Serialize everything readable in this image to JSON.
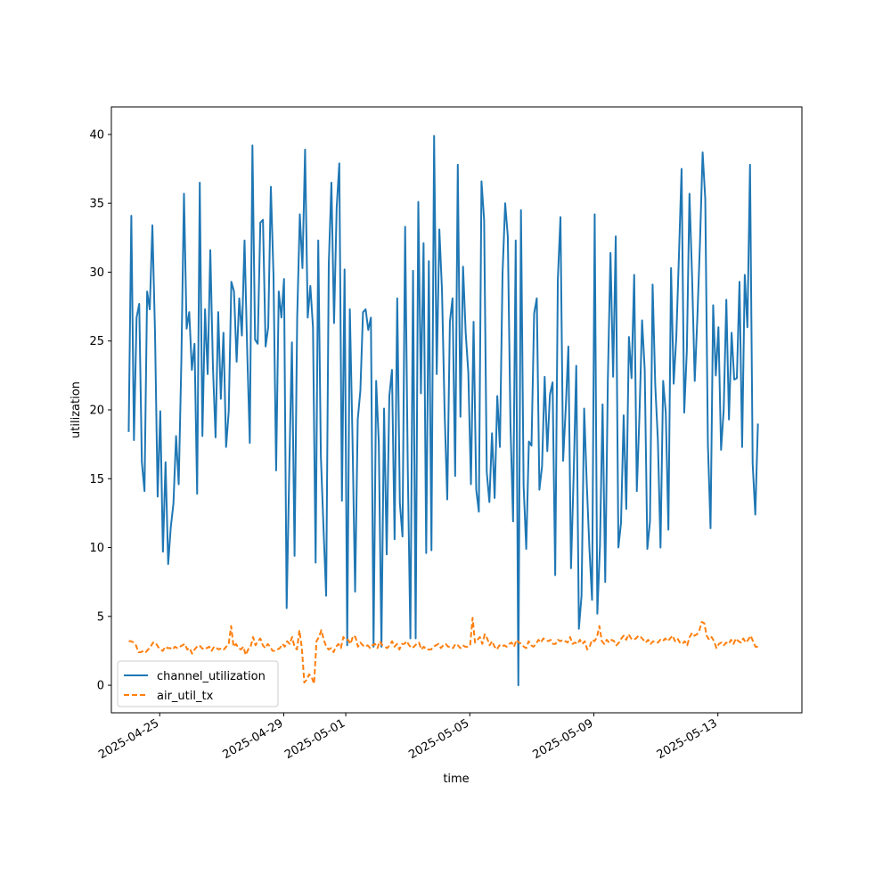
{
  "chart_data": {
    "type": "line",
    "xlabel": "time",
    "ylabel": "utilization",
    "ylim": [
      -2,
      42
    ],
    "xlim": [
      "2025-04-23T10:36",
      "2025-05-15T17:02"
    ],
    "x_start": "2025-04-24T00:00",
    "x_end": "2025-05-14T07:00",
    "x_tick_labels": [
      "2025-04-25",
      "2025-04-29",
      "2025-05-01",
      "2025-05-05",
      "2025-05-09",
      "2025-05-13"
    ],
    "y_ticks": [
      0,
      5,
      10,
      15,
      20,
      25,
      30,
      35,
      40
    ],
    "grid": false,
    "legend_position": "lower left",
    "series": [
      {
        "name": "channel_utilization",
        "color": "#1f77b4",
        "dash": "solid",
        "values": [
          18.4,
          34.1,
          17.8,
          26.7,
          27.7,
          16.2,
          14.1,
          28.6,
          27.3,
          33.4,
          25.6,
          13.7,
          19.9,
          9.7,
          16.2,
          8.8,
          11.5,
          13.2,
          18.1,
          14.6,
          23.5,
          35.7,
          25.9,
          27.1,
          22.9,
          24.8,
          13.9,
          36.5,
          18.1,
          27.3,
          22.6,
          31.6,
          23.1,
          18.0,
          27.1,
          20.8,
          25.6,
          17.3,
          19.9,
          29.3,
          28.6,
          23.5,
          28.1,
          25.4,
          32.3,
          24.4,
          17.6,
          39.2,
          25.1,
          24.8,
          33.6,
          33.8,
          24.6,
          26.0,
          36.2,
          29.8,
          15.6,
          28.6,
          26.7,
          29.5,
          5.6,
          15.7,
          24.9,
          9.4,
          26.7,
          34.2,
          30.3,
          38.9,
          26.7,
          29.0,
          26.0,
          8.9,
          32.3,
          16.6,
          11.4,
          6.5,
          30.6,
          36.5,
          26.3,
          34.7,
          37.9,
          13.4,
          30.2,
          2.9,
          27.3,
          18.0,
          6.8,
          19.3,
          21.4,
          27.1,
          27.3,
          25.8,
          26.7,
          2.8,
          22.1,
          17.6,
          2.8,
          20.1,
          9.5,
          21.0,
          22.9,
          10.6,
          28.1,
          13.2,
          10.8,
          33.3,
          15.8,
          3.4,
          30.1,
          3.4,
          35.1,
          21.2,
          32.1,
          9.6,
          30.8,
          9.8,
          39.9,
          22.6,
          33.1,
          28.7,
          19.8,
          13.5,
          26.4,
          28.1,
          15.2,
          37.8,
          19.5,
          30.4,
          25.6,
          22.7,
          14.6,
          26.4,
          14.2,
          12.6,
          36.6,
          33.8,
          15.5,
          13.3,
          18.3,
          13.6,
          21.0,
          17.3,
          29.9,
          35.0,
          32.6,
          19.0,
          11.9,
          32.3,
          0.0,
          34.5,
          14.5,
          9.9,
          17.7,
          17.4,
          27.0,
          28.1,
          14.2,
          15.9,
          22.4,
          17.0,
          21.1,
          22.0,
          8.0,
          29.5,
          34.0,
          16.3,
          20.1,
          24.6,
          8.5,
          15.2,
          23.2,
          4.1,
          6.5,
          20.1,
          14.6,
          9.9,
          6.2,
          34.2,
          5.2,
          10.1,
          20.4,
          7.5,
          22.2,
          31.4,
          22.4,
          32.6,
          10.0,
          11.8,
          19.6,
          12.8,
          25.3,
          22.3,
          29.8,
          14.1,
          19.6,
          26.5,
          22.9,
          9.9,
          11.9,
          29.1,
          21.8,
          17.8,
          10.0,
          22.1,
          19.8,
          11.3,
          30.3,
          21.9,
          25.3,
          31.2,
          37.5,
          19.8,
          24.3,
          35.7,
          29.6,
          22.1,
          26.7,
          32.2,
          38.7,
          35.3,
          17.5,
          11.4,
          27.6,
          22.5,
          26.0,
          17.1,
          20.0,
          28.0,
          19.3,
          25.6,
          22.2,
          22.3,
          29.3,
          17.3,
          29.8,
          26.0,
          37.8,
          16.1,
          12.4,
          19.0
        ]
      },
      {
        "name": "air_util_tx",
        "color": "#ff7f0e",
        "dash": "dashed",
        "values": [
          3.2,
          3.2,
          3.1,
          2.9,
          2.4,
          2.4,
          2.5,
          2.4,
          2.6,
          2.8,
          3.1,
          3.1,
          2.8,
          2.6,
          2.5,
          2.8,
          2.7,
          2.7,
          2.6,
          2.8,
          2.7,
          2.8,
          2.9,
          3.0,
          2.6,
          2.7,
          2.3,
          2.6,
          2.8,
          2.9,
          2.7,
          2.6,
          2.7,
          2.8,
          2.5,
          2.8,
          2.7,
          2.6,
          2.7,
          2.6,
          2.8,
          3.0,
          4.3,
          2.8,
          3.0,
          2.7,
          2.6,
          2.8,
          2.2,
          2.6,
          2.8,
          3.5,
          2.9,
          3.2,
          3.4,
          2.9,
          2.7,
          3.0,
          2.8,
          2.5,
          2.5,
          2.6,
          2.7,
          3.0,
          2.8,
          3.2,
          3.0,
          3.5,
          2.8,
          2.6,
          4.0,
          2.7,
          0.2,
          0.4,
          0.8,
          0.6,
          0.1,
          3.2,
          3.5,
          4.0,
          3.3,
          2.8,
          2.6,
          2.7,
          2.4,
          2.8,
          3.0,
          2.7,
          3.5,
          3.3,
          3.3,
          3.0,
          3.6,
          3.5,
          2.8,
          3.1,
          2.9,
          2.8,
          2.9,
          2.7,
          2.9,
          3.0,
          2.7,
          3.2,
          2.9,
          2.8,
          2.7,
          2.9,
          3.2,
          2.8,
          3.0,
          2.6,
          3.0,
          3.0,
          3.2,
          2.9,
          2.7,
          2.8,
          3.0,
          3.1,
          2.6,
          2.8,
          2.6,
          2.6,
          2.6,
          2.8,
          2.9,
          3.0,
          2.7,
          2.9,
          3.0,
          2.8,
          2.8,
          2.7,
          3.0,
          2.9,
          2.7,
          2.9,
          2.8,
          2.8,
          2.9,
          4.9,
          3.1,
          3.3,
          3.5,
          3.0,
          3.7,
          3.4,
          2.9,
          3.2,
          2.8,
          2.6,
          2.9,
          2.8,
          2.9,
          2.8,
          3.0,
          3.1,
          2.8,
          3.3,
          3.1,
          3.0,
          2.8,
          2.7,
          3.2,
          2.9,
          2.8,
          3.0,
          3.3,
          3.1,
          3.4,
          3.3,
          3.2,
          3.3,
          3.0,
          3.0,
          3.3,
          3.2,
          3.3,
          3.2,
          3.1,
          3.5,
          3.0,
          3.1,
          3.0,
          3.3,
          3.0,
          3.2,
          2.6,
          2.8,
          3.3,
          3.2,
          3.5,
          4.3,
          3.2,
          3.0,
          3.3,
          3.1,
          3.3,
          3.2,
          2.9,
          3.1,
          3.4,
          3.6,
          3.3,
          3.7,
          3.4,
          3.3,
          3.4,
          3.6,
          3.5,
          3.3,
          3.1,
          3.3,
          3.0,
          3.2,
          3.1,
          3.1,
          3.3,
          3.2,
          3.4,
          3.2,
          3.4,
          3.6,
          3.2,
          3.4,
          3.1,
          3.0,
          3.2,
          2.9,
          3.5,
          3.8,
          3.6,
          3.7,
          4.0,
          4.6,
          4.5,
          3.6,
          3.3,
          3.5,
          3.2,
          2.7,
          3.0,
          3.1,
          2.9,
          3.1,
          3.0,
          3.3,
          3.0,
          3.4,
          3.2,
          3.1,
          3.4,
          3.1,
          3.3,
          3.6,
          3.2,
          2.8,
          2.8
        ]
      }
    ]
  }
}
